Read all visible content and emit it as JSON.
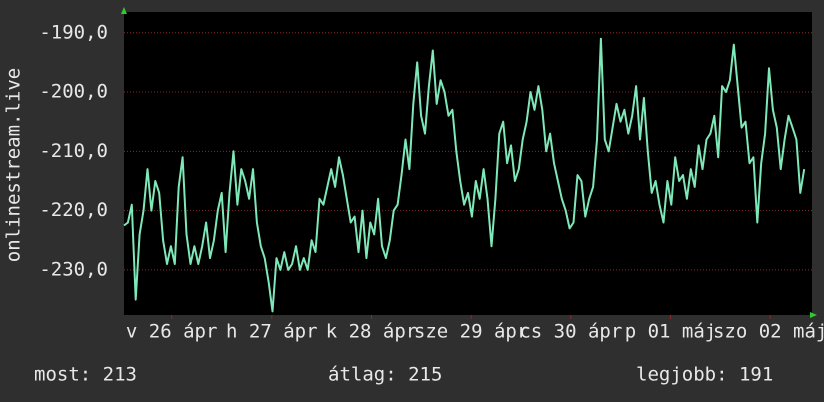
{
  "chart_data": {
    "type": "line",
    "ylabel": "onlinestream.live",
    "color": "#7fe8b8",
    "grid": true,
    "ylim": [
      -237.6,
      -186.5
    ],
    "yticks": [
      {
        "value": -190,
        "label": "-190,0"
      },
      {
        "value": -200,
        "label": "-200,0"
      },
      {
        "value": -210,
        "label": "-210,0"
      },
      {
        "value": -220,
        "label": "-220,0"
      },
      {
        "value": -230,
        "label": "-230,0"
      }
    ],
    "xlim": [
      0,
      176
    ],
    "xticks": [
      {
        "value": 12.2,
        "label": "v 26 ápr"
      },
      {
        "value": 37.8,
        "label": "h 27 ápr"
      },
      {
        "value": 63.3,
        "label": "k 28 ápr"
      },
      {
        "value": 88.8,
        "label": "sze 29 ápr"
      },
      {
        "value": 114.3,
        "label": "cs 30 ápr"
      },
      {
        "value": 139.8,
        "label": "p 01 máj"
      },
      {
        "value": 165.3,
        "label": "szo 02 máj"
      }
    ],
    "values": [
      -222.5,
      -222,
      -219,
      -235,
      -224,
      -220,
      -213,
      -220,
      -215,
      -217,
      -225,
      -229,
      -226,
      -229,
      -216,
      -211,
      -224,
      -229,
      -226,
      -229,
      -226,
      -222,
      -228,
      -225,
      -220,
      -217,
      -227,
      -217,
      -210,
      -219,
      -213,
      -215,
      -218,
      -213,
      -222,
      -226,
      -228,
      -232,
      -237,
      -228,
      -230,
      -227,
      -230,
      -229,
      -226,
      -230,
      -228,
      -230,
      -225,
      -227,
      -218,
      -219,
      -216,
      -213,
      -216,
      -211,
      -214,
      -218,
      -222,
      -221,
      -227,
      -220,
      -228,
      -222,
      -224,
      -218,
      -226,
      -228,
      -225,
      -220,
      -219,
      -214,
      -208,
      -213,
      -202,
      -195,
      -204,
      -207,
      -199,
      -193,
      -202,
      -198,
      -200,
      -204,
      -203,
      -210,
      -215,
      -219,
      -217,
      -221,
      -215,
      -218,
      -213,
      -218,
      -226,
      -218,
      -207,
      -205,
      -212,
      -209,
      -215,
      -213,
      -208,
      -205,
      -200,
      -203,
      -199,
      -203,
      -210,
      -207,
      -212,
      -215,
      -218,
      -220,
      -223,
      -222,
      -214,
      -215,
      -221,
      -218,
      -216,
      -208,
      -191,
      -208,
      -210,
      -206,
      -202,
      -205,
      -203,
      -207,
      -204,
      -199,
      -208,
      -201,
      -210,
      -217,
      -215,
      -219,
      -222,
      -215,
      -219,
      -211,
      -215,
      -214,
      -218,
      -213,
      -216,
      -209,
      -213,
      -208,
      -207,
      -204,
      -211,
      -199,
      -200,
      -198,
      -192,
      -199,
      -206,
      -205,
      -212,
      -211,
      -222,
      -212,
      -207,
      -196,
      -203,
      -206,
      -213,
      -208,
      -204,
      -206,
      -208,
      -217,
      -213
    ],
    "footer": [
      "most: 213",
      "átlag: 215",
      "legjobb: 191"
    ]
  }
}
